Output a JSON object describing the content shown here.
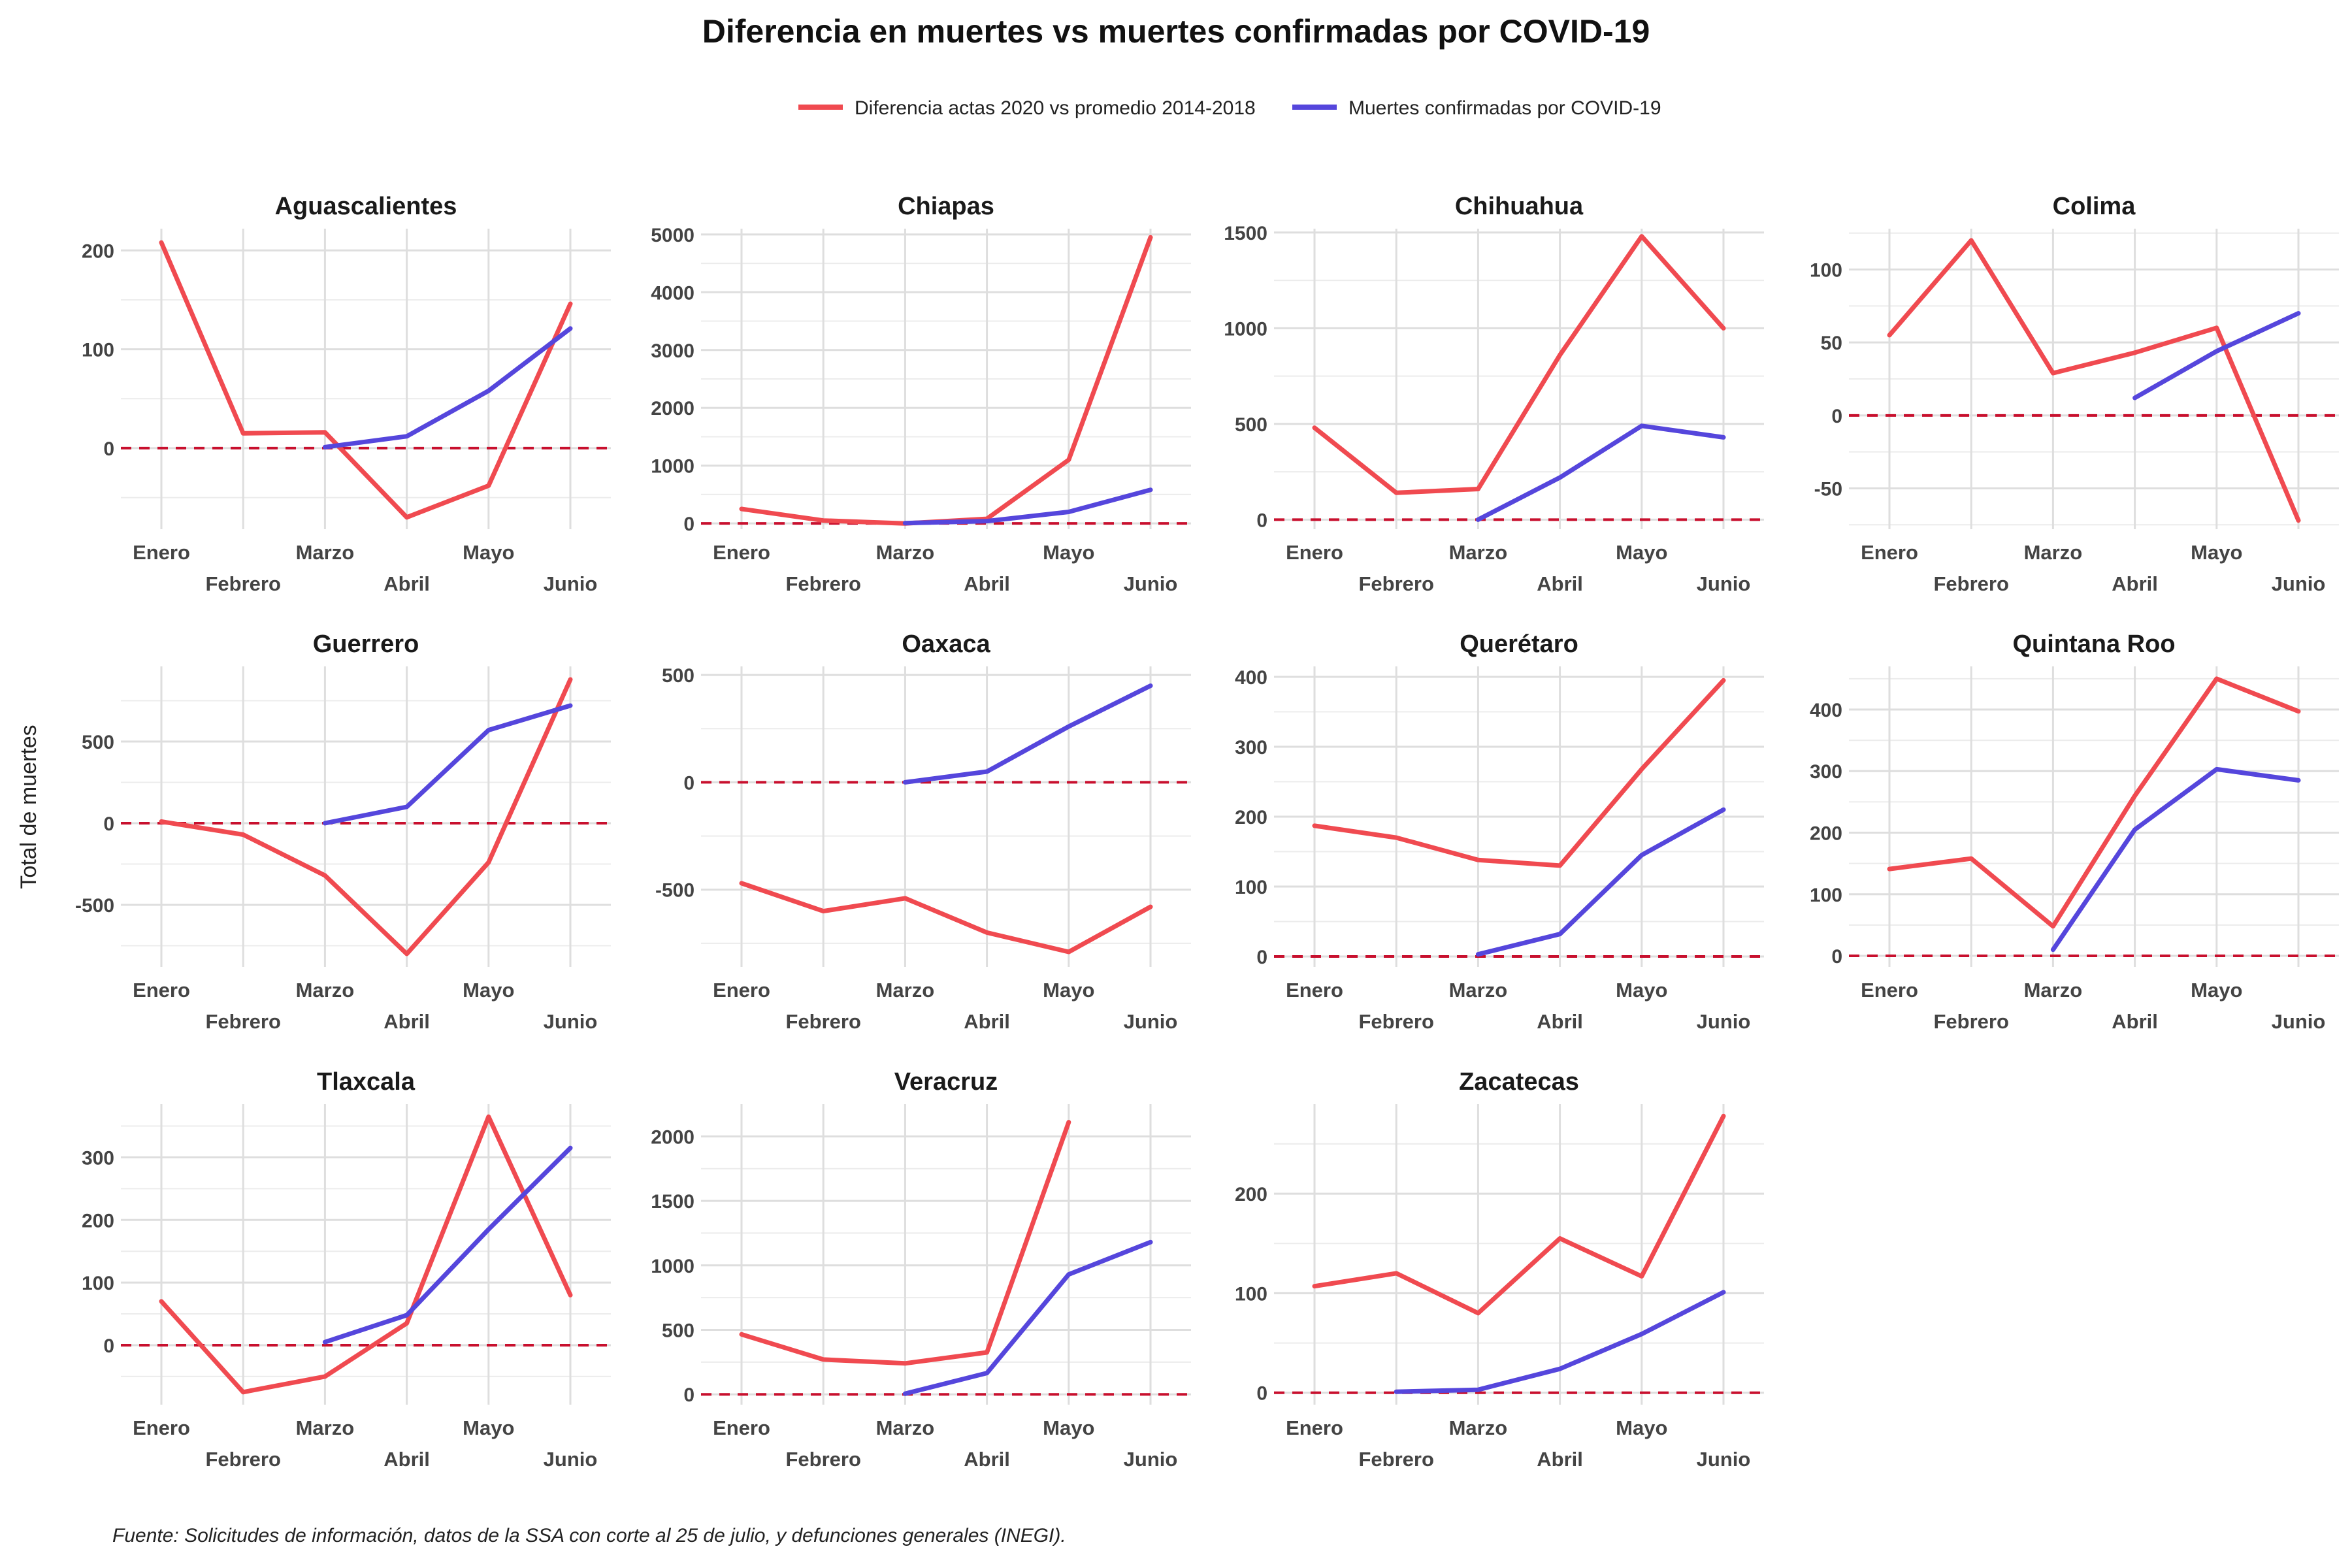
{
  "chart_data": {
    "type": "line",
    "title": "Diferencia en muertes vs muertes confirmadas por COVID-19",
    "ylabel": "Total de muertes",
    "caption": "Fuente: Solicitudes de información, datos de la SSA con corte al 25 de julio, y defunciones generales (INEGI).",
    "legend_position": "top",
    "grid": true,
    "reference_line": {
      "y": 0,
      "style": "dashed",
      "color": "#c8102e"
    },
    "x": [
      "Enero",
      "Febrero",
      "Marzo",
      "Abril",
      "Mayo",
      "Junio"
    ],
    "series_info": [
      {
        "name": "Diferencia actas 2020 vs promedio 2014-2018",
        "color": "#f04a50"
      },
      {
        "name": "Muertes confirmadas por COVID-19",
        "color": "#5546dc"
      }
    ],
    "panels": [
      {
        "title": "Aguascalientes",
        "ylim": [
          -82,
          222
        ],
        "yticks": [
          0,
          100,
          200
        ],
        "diferencia": [
          208,
          15,
          16,
          -70,
          -38,
          146
        ],
        "covid": [
          null,
          null,
          1,
          12,
          58,
          121
        ]
      },
      {
        "title": "Chiapas",
        "ylim": [
          -100,
          5100
        ],
        "yticks": [
          0,
          1000,
          2000,
          3000,
          4000,
          5000
        ],
        "diferencia": [
          250,
          50,
          0,
          80,
          1100,
          4950
        ],
        "covid": [
          null,
          null,
          5,
          40,
          200,
          580
        ]
      },
      {
        "title": "Chihuahua",
        "ylim": [
          -50,
          1520
        ],
        "yticks": [
          0,
          500,
          1000,
          1500
        ],
        "diferencia": [
          480,
          140,
          160,
          860,
          1480,
          1000
        ],
        "covid": [
          null,
          null,
          0,
          220,
          490,
          430
        ]
      },
      {
        "title": "Colima",
        "ylim": [
          -78,
          128
        ],
        "yticks": [
          -50,
          0,
          50,
          100
        ],
        "diferencia": [
          55,
          120,
          29,
          43,
          60,
          -72
        ],
        "covid": [
          null,
          null,
          null,
          12,
          44,
          70
        ]
      },
      {
        "title": "Guerrero",
        "ylim": [
          -880,
          960
        ],
        "yticks": [
          -500,
          0,
          500
        ],
        "diferencia": [
          10,
          -70,
          -320,
          -800,
          -240,
          880
        ],
        "covid": [
          null,
          null,
          0,
          100,
          570,
          720
        ]
      },
      {
        "title": "Oaxaca",
        "ylim": [
          -860,
          540
        ],
        "yticks": [
          -500,
          0,
          500
        ],
        "diferencia": [
          -470,
          -600,
          -540,
          -700,
          -790,
          -580
        ],
        "covid": [
          null,
          null,
          0,
          50,
          260,
          450
        ]
      },
      {
        "title": "Querétaro",
        "ylim": [
          -15,
          415
        ],
        "yticks": [
          0,
          100,
          200,
          300,
          400
        ],
        "diferencia": [
          187,
          170,
          138,
          130,
          268,
          395
        ],
        "covid": [
          null,
          null,
          3,
          32,
          145,
          210
        ]
      },
      {
        "title": "Quintana Roo",
        "ylim": [
          -18,
          470
        ],
        "yticks": [
          0,
          100,
          200,
          300,
          400
        ],
        "diferencia": [
          141,
          158,
          48,
          260,
          450,
          397
        ],
        "covid": [
          null,
          null,
          10,
          205,
          303,
          285
        ]
      },
      {
        "title": "Tlaxcala",
        "ylim": [
          -95,
          385
        ],
        "yticks": [
          0,
          100,
          200,
          300
        ],
        "diferencia": [
          70,
          -75,
          -50,
          35,
          365,
          80
        ],
        "covid": [
          null,
          null,
          5,
          48,
          185,
          315
        ]
      },
      {
        "title": "Veracruz",
        "ylim": [
          -80,
          2250
        ],
        "yticks": [
          0,
          500,
          1000,
          1500,
          2000
        ],
        "diferencia": [
          465,
          270,
          240,
          325,
          2110,
          null
        ],
        "covid": [
          null,
          null,
          5,
          165,
          930,
          1180
        ]
      },
      {
        "title": "Zacatecas",
        "ylim": [
          -12,
          290
        ],
        "yticks": [
          0,
          100,
          200
        ],
        "diferencia": [
          107,
          120,
          80,
          155,
          117,
          278
        ],
        "covid": [
          null,
          1,
          3,
          24,
          59,
          101
        ]
      }
    ]
  }
}
